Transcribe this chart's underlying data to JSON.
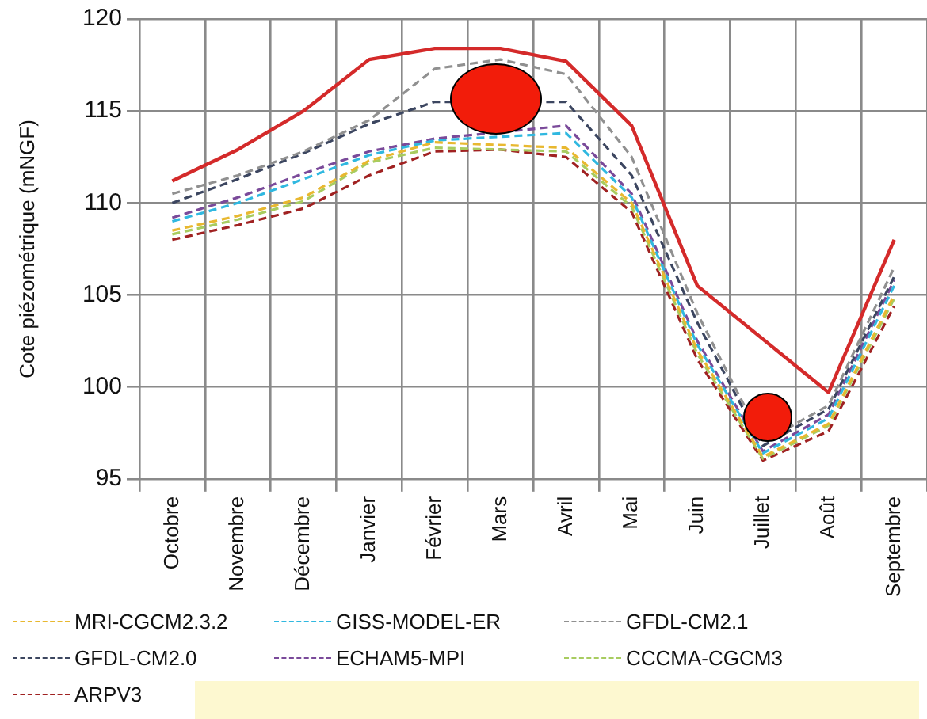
{
  "chart_data": {
    "type": "line",
    "ylabel": "Cote piézométrique (mNGF)",
    "categories": [
      "Octobre",
      "Novembre",
      "Décembre",
      "Janvier",
      "Février",
      "Mars",
      "Avril",
      "Mai",
      "Juin",
      "Juillet",
      "Août",
      "Septembre"
    ],
    "ylim": [
      95,
      120
    ],
    "yticks": [
      95,
      100,
      105,
      110,
      115,
      120
    ],
    "grid": true,
    "legend": "bottom",
    "marker": "none",
    "series": [
      {
        "color": "#d42a2a",
        "line_style": "solid",
        "values": [
          111.2,
          112.9,
          115.0,
          117.8,
          118.4,
          118.4,
          117.7,
          114.2,
          105.5,
          null,
          99.7,
          108.0
        ]
      },
      {
        "name": "MRI-CGCM2.3.2",
        "color": "#e8b830",
        "line_style": "dashed",
        "values": [
          108.5,
          109.3,
          110.3,
          112.3,
          113.3,
          null,
          113.0,
          110.0,
          102.0,
          96.2,
          98.0,
          105.0
        ]
      },
      {
        "name": "GISS-MODEL-ER",
        "color": "#30b8e0",
        "line_style": "dashed",
        "values": [
          109.0,
          110.0,
          111.3,
          112.6,
          113.4,
          null,
          113.8,
          110.3,
          102.3,
          96.4,
          98.3,
          105.5
        ]
      },
      {
        "name": "GFDL-CM2.1",
        "color": "#909090",
        "line_style": "dashed",
        "values": [
          110.5,
          111.5,
          112.8,
          114.5,
          117.3,
          117.8,
          117.0,
          112.5,
          104.0,
          97.0,
          99.0,
          106.5
        ]
      },
      {
        "name": "GFDL-CM2.0",
        "color": "#3c4660",
        "line_style": "dashed",
        "values": [
          110.0,
          111.3,
          112.7,
          114.3,
          115.5,
          null,
          115.5,
          111.5,
          103.5,
          96.8,
          98.8,
          106.0
        ]
      },
      {
        "name": "ECHAM5-MPI",
        "color": "#7a4a9a",
        "line_style": "dashed",
        "values": [
          109.2,
          110.3,
          111.6,
          112.8,
          113.5,
          null,
          114.2,
          110.5,
          102.5,
          96.5,
          98.5,
          105.8
        ]
      },
      {
        "name": "CCCMA-CGCM3",
        "color": "#a8cc60",
        "line_style": "dashed",
        "values": [
          108.3,
          109.1,
          110.1,
          112.2,
          113.0,
          null,
          112.8,
          109.8,
          101.8,
          96.1,
          97.9,
          104.8
        ]
      },
      {
        "name": "ARPV3",
        "color": "#a02222",
        "line_style": "dashed",
        "values": [
          108.0,
          108.8,
          109.7,
          111.5,
          112.8,
          112.9,
          112.5,
          109.5,
          101.5,
          96.0,
          97.6,
          104.4
        ]
      }
    ]
  }
}
